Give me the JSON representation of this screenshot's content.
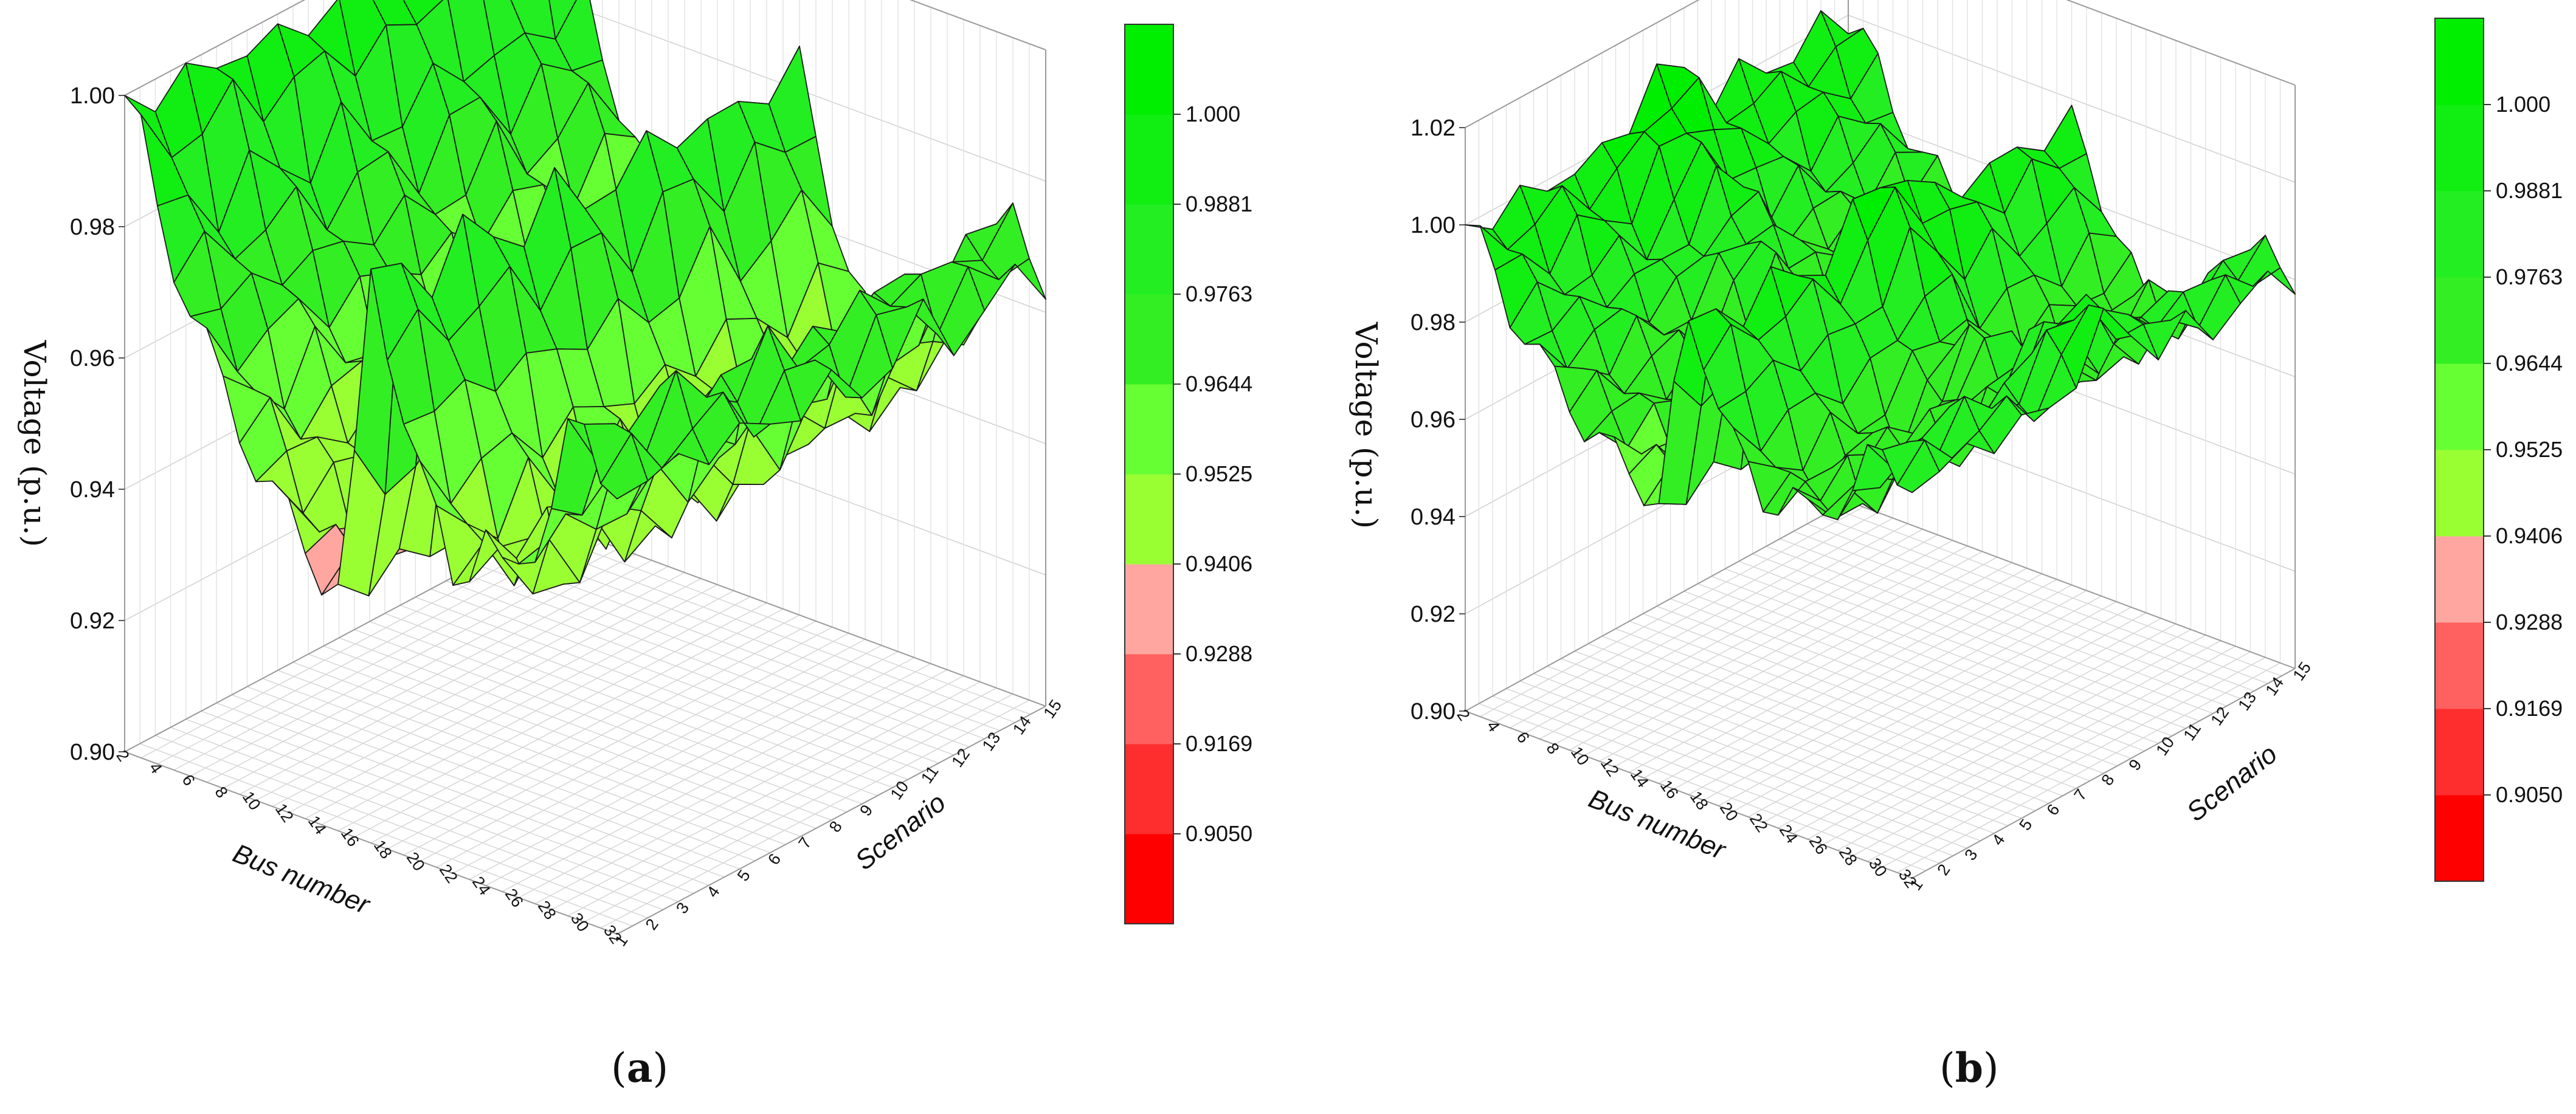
{
  "chart_data": [
    {
      "type": "3d-surface",
      "panel_label": "a",
      "xlabel": "Bus number",
      "ylabel": "Scenario",
      "zlabel": "Voltage (p.u.)",
      "x_ticks": [
        "2",
        "4",
        "6",
        "8",
        "10",
        "12",
        "14",
        "16",
        "18",
        "20",
        "22",
        "24",
        "26",
        "28",
        "30",
        "32"
      ],
      "y_ticks": [
        "1",
        "2",
        "3",
        "4",
        "5",
        "6",
        "7",
        "8",
        "9",
        "10",
        "11",
        "12",
        "13",
        "14",
        "15"
      ],
      "z_ticks": [
        "0.90",
        "0.92",
        "0.94",
        "0.96",
        "0.98",
        "1.00"
      ],
      "zlim": [
        0.9,
        1.0
      ],
      "xlim": [
        2,
        32
      ],
      "ylim": [
        1,
        15
      ],
      "colorbar": {
        "labels": [
          "1.000",
          "0.9881",
          "0.9763",
          "0.9644",
          "0.9525",
          "0.9406",
          "0.9288",
          "0.9169",
          "0.9050"
        ],
        "levels": [
          0.8931,
          0.905,
          0.9169,
          0.9288,
          0.9406,
          0.9525,
          0.9644,
          0.9763,
          0.9881,
          1.0,
          1.0119
        ],
        "colors": [
          "#ff0000",
          "#ff2e2e",
          "#ff6060",
          "#ffa6a0",
          "#99ff33",
          "#66ff33",
          "#33ee22",
          "#22ee22",
          "#11ee11",
          "#00ee00"
        ]
      },
      "profile": [
        1.0,
        0.994,
        0.984,
        0.978,
        0.972,
        0.966,
        0.96,
        0.956,
        0.952,
        0.948,
        0.944,
        0.941,
        0.939,
        0.938,
        0.955,
        0.986,
        0.978,
        0.968,
        0.958,
        0.952,
        0.946,
        0.949,
        0.953,
        0.947,
        0.951,
        0.956,
        0.962,
        0.972,
        0.974,
        0.971,
        0.969
      ],
      "scenario_profile": [
        1.0,
        0.998,
        0.996,
        0.999,
        0.997,
        0.995,
        0.998,
        0.996,
        0.994,
        0.997,
        0.999,
        0.995,
        0.996,
        0.998,
        0.997
      ]
    },
    {
      "type": "3d-surface",
      "panel_label": "b",
      "xlabel": "Bus number",
      "ylabel": "Scenario",
      "zlabel": "Voltage (p.u.)",
      "x_ticks": [
        "2",
        "4",
        "6",
        "8",
        "10",
        "12",
        "14",
        "16",
        "18",
        "20",
        "22",
        "24",
        "26",
        "28",
        "30",
        "32"
      ],
      "y_ticks": [
        "1",
        "2",
        "3",
        "4",
        "5",
        "6",
        "7",
        "8",
        "9",
        "10",
        "11",
        "12",
        "13",
        "14",
        "15"
      ],
      "z_ticks": [
        "0.90",
        "0.92",
        "0.94",
        "0.96",
        "0.98",
        "1.00",
        "1.02"
      ],
      "zlim": [
        0.9,
        1.02
      ],
      "xlim": [
        2,
        32
      ],
      "ylim": [
        1,
        15
      ],
      "colorbar": {
        "labels": [
          "1.000",
          "0.9881",
          "0.9763",
          "0.9644",
          "0.9525",
          "0.9406",
          "0.9288",
          "0.9169",
          "0.9050"
        ],
        "levels": [
          0.8931,
          0.905,
          0.9169,
          0.9288,
          0.9406,
          0.9525,
          0.9644,
          0.9763,
          0.9881,
          1.0,
          1.0119
        ],
        "colors": [
          "#ff0000",
          "#ff2e2e",
          "#ff6060",
          "#ffa6a0",
          "#99ff33",
          "#66ff33",
          "#33ee22",
          "#22ee22",
          "#11ee11",
          "#00ee00"
        ]
      },
      "profile": [
        1.0,
        0.997,
        0.992,
        0.986,
        0.982,
        0.978,
        0.975,
        0.972,
        0.968,
        0.966,
        0.964,
        0.962,
        0.96,
        0.958,
        0.98,
        0.996,
        0.992,
        0.984,
        0.976,
        0.97,
        0.966,
        0.968,
        0.97,
        0.966,
        0.968,
        0.972,
        0.976,
        0.982,
        0.984,
        0.983,
        0.982
      ],
      "scenario_profile": [
        1.0,
        0.999,
        0.998,
        1.0,
        0.999,
        0.998,
        1.004,
        1.01,
        1.006,
        0.999,
        1.0,
        0.998,
        0.999,
        1.0,
        0.999
      ]
    }
  ],
  "captions": {
    "a": "a",
    "b": "b"
  }
}
